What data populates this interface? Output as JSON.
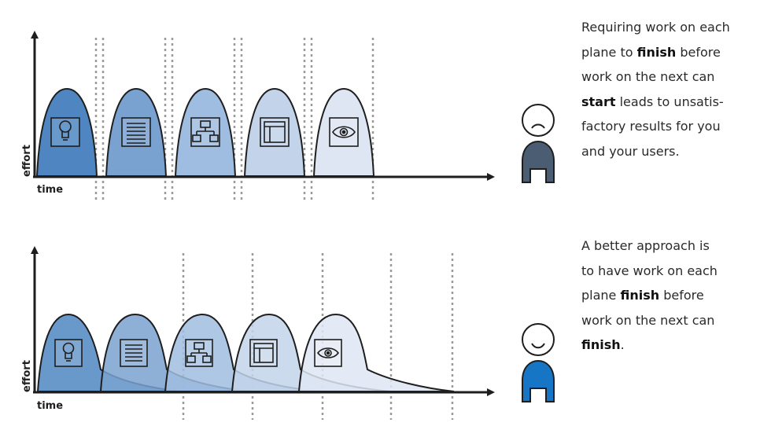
{
  "colors": {
    "plane1": "#4f86c1",
    "plane2": "#7aa2d0",
    "plane3": "#9fbde0",
    "plane4": "#c2d3ea",
    "plane5": "#dfe6f3",
    "axis": "#1e1e1e",
    "divider": "#9a9a9a",
    "sad_user": "#4a5d73",
    "happy_user": "#1675c4"
  },
  "top_panel": {
    "ylabel": "effort",
    "xlabel": "time",
    "plane_icons": [
      "lightbulb-icon",
      "list-icon",
      "flowchart-icon",
      "layout-icon",
      "eye-icon"
    ],
    "user_mood": "sad",
    "description": {
      "line1": "Requiring work on each",
      "line2_pre": "plane to ",
      "line2_bold": "finish",
      "line2_post": " before",
      "line3": "work on the next can",
      "line4_bold": "start",
      "line4_post": " leads to unsatis-",
      "line5": "factory results for you",
      "line6": "and your users."
    }
  },
  "bottom_panel": {
    "ylabel": "effort",
    "xlabel": "time",
    "plane_icons": [
      "lightbulb-icon",
      "list-icon",
      "flowchart-icon",
      "layout-icon",
      "eye-icon"
    ],
    "user_mood": "happy",
    "description": {
      "line1": "A better approach is",
      "line2": "to have work on each",
      "line3_pre": "plane ",
      "line3_bold": "finish",
      "line3_post": " before",
      "line4": "work on the next can",
      "line5_bold": "finish",
      "line5_post": "."
    }
  }
}
